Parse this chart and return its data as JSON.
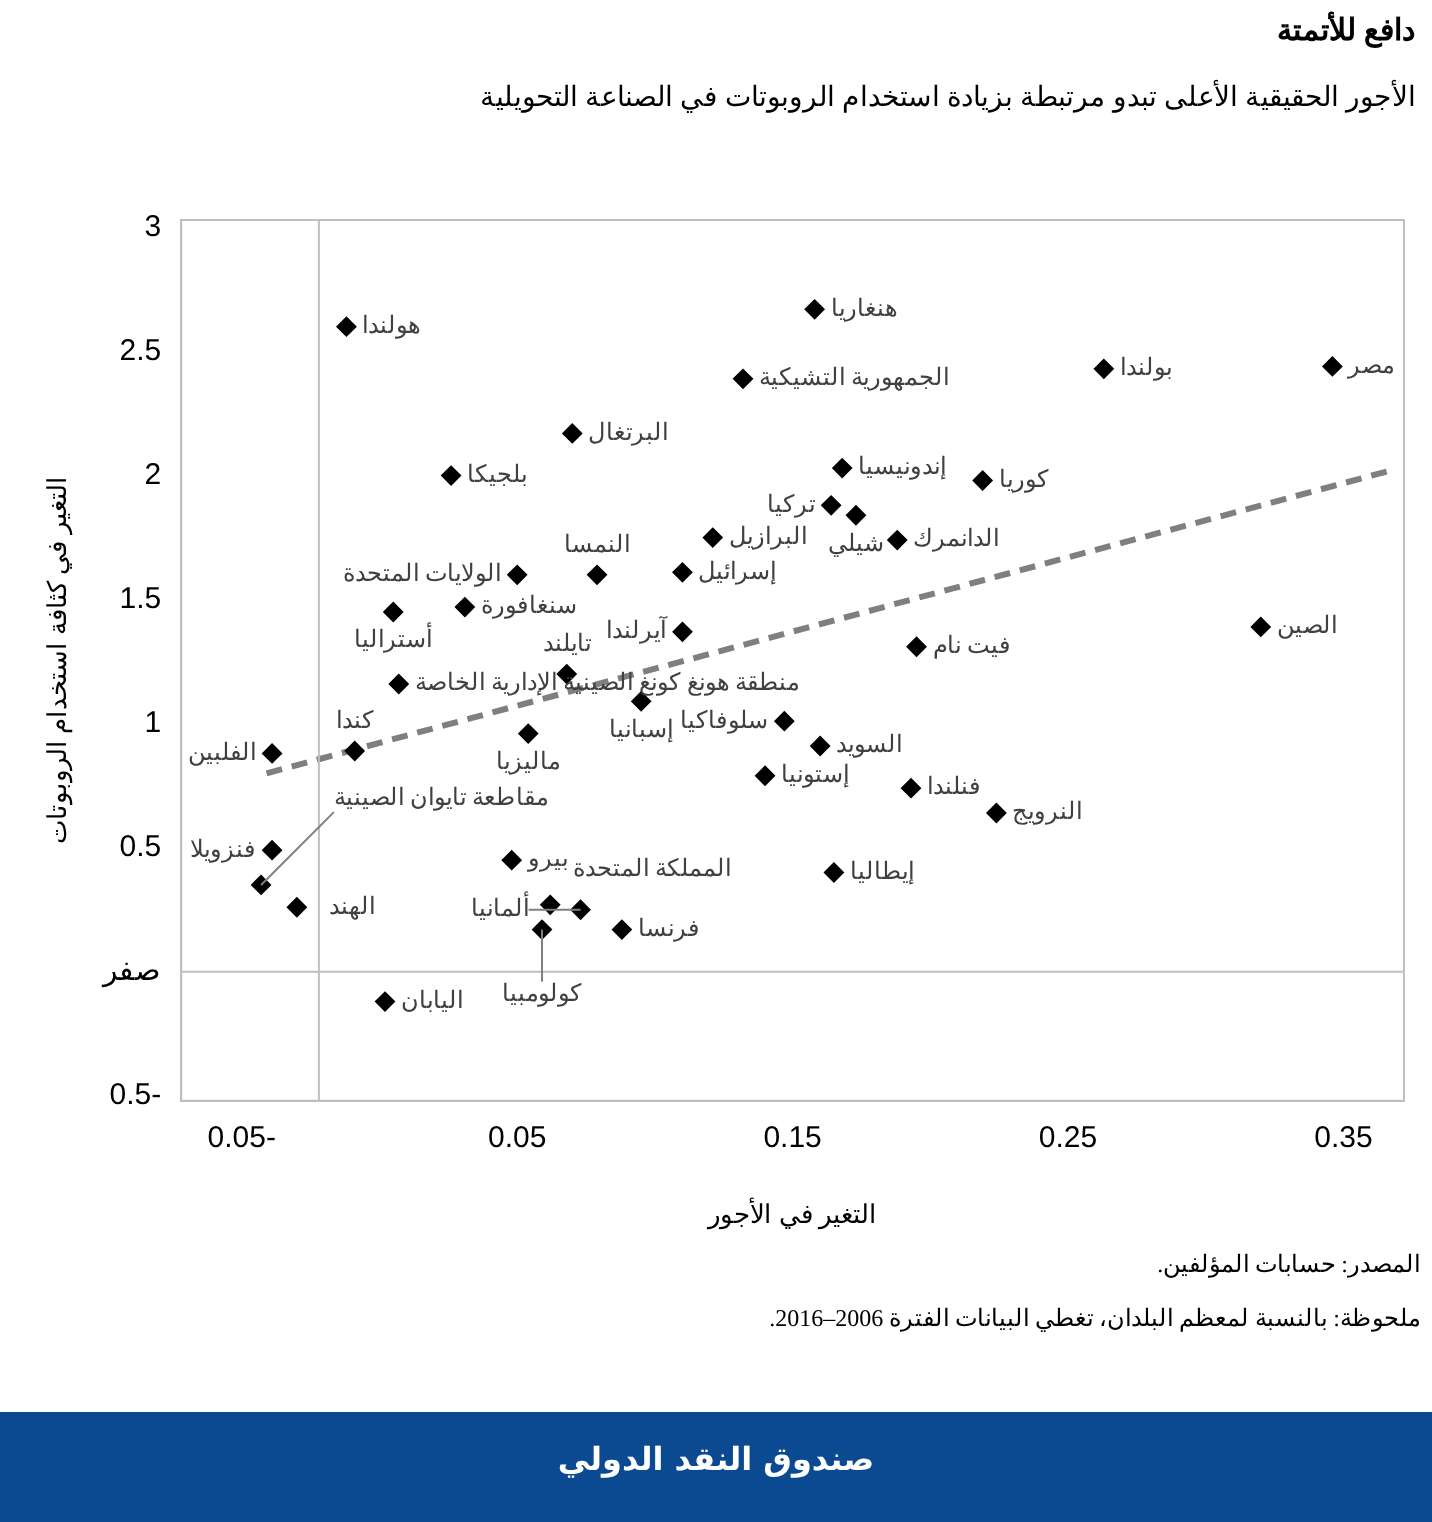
{
  "chart_data": {
    "type": "scatter",
    "title": "دافع للأتمتة",
    "subtitle": "الأجور الحقيقية الأعلى تبدو مرتبطة بزيادة استخدام الروبوتات في الصناعة التحويلية",
    "xlabel": "التغير في الأجور",
    "ylabel": "التغير في كثافة استخدام الروبوتات",
    "xlim": [
      -0.072,
      0.372
    ],
    "xticks": [
      {
        "value": -0.05,
        "label": "0.05-"
      },
      0.05,
      0.15,
      0.25,
      0.35
    ],
    "ylim": [
      -0.52,
      3.03
    ],
    "yticks": [
      {
        "value": -0.5,
        "label": "0.5-"
      },
      {
        "value": 0,
        "label": "صفر"
      },
      0.5,
      1,
      1.5,
      2,
      2.5,
      3
    ],
    "grid": false,
    "legend": false,
    "marker": "diamond",
    "ref_lines": [
      {
        "axis": "y",
        "value": 0,
        "color": "#bfbfbf"
      },
      {
        "axis": "x",
        "value": -0.022,
        "color": "#bfbfbf"
      }
    ],
    "series": [
      {
        "color": "#000000",
        "x": [
          -0.012,
          0.158,
          0.346,
          0.263,
          0.132,
          0.07,
          0.026,
          0.168,
          0.219,
          0.164,
          0.173,
          0.188,
          0.121,
          0.05,
          0.079,
          0.11,
          0.005,
          0.031,
          0.11,
          0.195,
          0.32,
          0.007,
          0.068,
          0.095,
          0.054,
          0.147,
          0.16,
          0.14,
          0.193,
          0.224,
          0.165,
          -0.039,
          -0.009,
          -0.039,
          -0.043,
          -0.03,
          0.048,
          0.062,
          0.073,
          0.059,
          0.088,
          0.002
        ],
        "values": [
          2.6,
          2.67,
          2.44,
          2.43,
          2.39,
          2.17,
          2.0,
          2.03,
          1.98,
          1.88,
          1.84,
          1.74,
          1.75,
          1.6,
          1.6,
          1.61,
          1.45,
          1.47,
          1.37,
          1.31,
          1.39,
          1.16,
          1.2,
          1.09,
          0.96,
          1.01,
          0.91,
          0.79,
          0.74,
          0.64,
          0.4,
          0.88,
          0.89,
          0.49,
          0.35,
          0.26,
          0.45,
          0.27,
          0.25,
          0.17,
          0.17,
          -0.12
        ],
        "value_labels": [
          "هولندا",
          "هنغاريا",
          "مصر",
          "بولندا",
          "الجمهورية التشيكية",
          "البرتغال",
          "بلجيكا",
          "إندونيسيا",
          "كوريا",
          "تركيا",
          "شيلي",
          "الدانمرك",
          "البرازيل",
          "الولايات المتحدة",
          "النمسا",
          "إسرائيل",
          "أستراليا",
          "سنغافورة",
          "آيرلندا",
          "فيت نام",
          "الصين",
          "منطقة هونغ كونغ الصينية الإدارية الخاصة",
          "تايلند",
          "إسبانيا",
          "ماليزيا",
          "سلوفاكيا",
          "السويد",
          "إستونيا",
          "فنلندا",
          "النرويج",
          "إيطاليا",
          "الفلبين",
          "كندا",
          "فنزويلا",
          "مقاطعة تايوان الصينية",
          "الهند",
          "بيرو",
          "المملكة المتحدة",
          "ألمانيا",
          "كولومبيا",
          "فرنسا",
          "اليابان"
        ]
      },
      {
        "type": "line",
        "color": "#7f7f7f",
        "line_style": "dashed",
        "marker": "none",
        "x": [
          -0.041,
          0.367
        ],
        "values": [
          0.8,
          2.02
        ]
      }
    ],
    "annotations": [
      "المصدر: حسابات المؤلفين.",
      "ملحوظة: بالنسبة لمعظم البلدان، تغطي البيانات الفترة 2006–2016.",
      "صندوق النقد الدولي"
    ]
  }
}
